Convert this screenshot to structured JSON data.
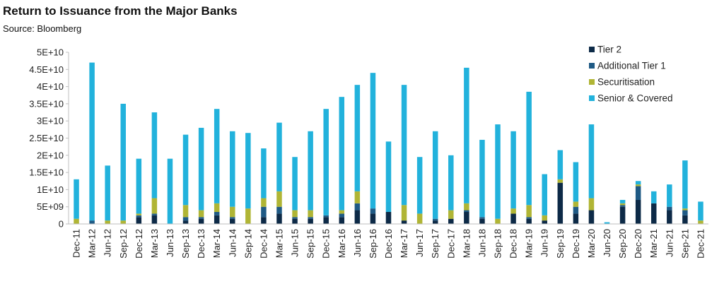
{
  "chart_data": {
    "type": "bar",
    "stacked": true,
    "title": "Return to Issuance from the Major Banks",
    "subtitle": "Source: Bloomberg",
    "xlabel": "",
    "ylabel": "",
    "ylim": [
      0,
      50000000000
    ],
    "yticks": [
      "0",
      "5E+09",
      "1E+10",
      "1.5E+10",
      "2E+10",
      "2.5E+10",
      "3E+10",
      "3.5E+10",
      "4E+10",
      "4.5E+10",
      "5E+10"
    ],
    "grid": false,
    "legend_position": "top-right",
    "categories": [
      "Dec-11",
      "Mar-12",
      "Jun-12",
      "Sep-12",
      "Dec-12",
      "Mar-13",
      "Jun-13",
      "Sep-13",
      "Dec-13",
      "Mar-14",
      "Jun-14",
      "Sep-14",
      "Dec-14",
      "Mar-15",
      "Jun-15",
      "Sep-15",
      "Dec-15",
      "Mar-16",
      "Jun-16",
      "Sep-16",
      "Dec-16",
      "Mar-17",
      "Jun-17",
      "Sep-17",
      "Dec-17",
      "Mar-18",
      "Jun-18",
      "Sep-18",
      "Dec-18",
      "Mar-19",
      "Jun-19",
      "Sep-19",
      "Dec-19",
      "Mar-20",
      "Jun-20",
      "Sep-20",
      "Dec-20",
      "Mar-21",
      "Jun-21",
      "Sep-21",
      "Dec-21"
    ],
    "tick_labels": [
      "Dec-11",
      "Mar-12",
      "Jun-12",
      "Sep-12",
      "Dec-12",
      "Mar-13",
      "Jun-13",
      "Sep-13",
      "Dec-13",
      "Mar-14",
      "Jun-14",
      "Sep-14",
      "Dec-14",
      "Mar-15",
      "Jun-15",
      "Sep-15",
      "Dec-15",
      "Mar-16",
      "Jun-16",
      "Sep-16",
      "Dec-16",
      "Mar-17",
      "Jun-17",
      "Sep-17",
      "Dec-17",
      "Mar-18",
      "Jun-18",
      "Sep-18",
      "Dec-18",
      "Mar-19",
      "Jun-19",
      "Sep-19",
      "Dec-19",
      "Mar-20",
      "Jun-20",
      "Sep-20",
      "Dec-20",
      "Mar-21",
      "Jun-21",
      "Sep-21",
      "Dec-21"
    ],
    "series": [
      {
        "name": "Tier 2",
        "color": "#0d2a47",
        "values": [
          0,
          0,
          0,
          0,
          2000000000,
          2500000000,
          0,
          1000000000,
          1500000000,
          2500000000,
          1500000000,
          0,
          2000000000,
          3000000000,
          1500000000,
          1500000000,
          2000000000,
          2000000000,
          4000000000,
          3000000000,
          3500000000,
          1000000000,
          0,
          1000000000,
          1500000000,
          3500000000,
          1500000000,
          0,
          3000000000,
          1500000000,
          1000000000,
          12000000000,
          3000000000,
          4000000000,
          0,
          5000000000,
          7000000000,
          6000000000,
          4000000000,
          2500000000,
          0
        ]
      },
      {
        "name": "Additional Tier 1",
        "color": "#1f5a85",
        "values": [
          0,
          1000000000,
          0,
          0,
          500000000,
          500000000,
          0,
          1000000000,
          500000000,
          1000000000,
          500000000,
          0,
          3000000000,
          2000000000,
          500000000,
          500000000,
          500000000,
          1000000000,
          2000000000,
          1500000000,
          0,
          0,
          0,
          500000000,
          0,
          500000000,
          500000000,
          0,
          0,
          500000000,
          0,
          0,
          2000000000,
          0,
          0,
          500000000,
          4000000000,
          0,
          1000000000,
          1500000000,
          0
        ]
      },
      {
        "name": "Securitisation",
        "color": "#b0b535",
        "values": [
          1500000000,
          0,
          1000000000,
          1000000000,
          500000000,
          4500000000,
          0,
          3500000000,
          2000000000,
          2500000000,
          3000000000,
          4500000000,
          2500000000,
          4500000000,
          2000000000,
          2000000000,
          0,
          1000000000,
          3500000000,
          0,
          0,
          4500000000,
          3000000000,
          0,
          2500000000,
          2000000000,
          0,
          1500000000,
          1500000000,
          3500000000,
          1500000000,
          1000000000,
          1500000000,
          3500000000,
          0,
          500000000,
          500000000,
          0,
          0,
          500000000,
          1000000000
        ]
      },
      {
        "name": "Senior & Covered",
        "color": "#22b2dc",
        "values": [
          11500000000,
          46000000000,
          16000000000,
          34000000000,
          16000000000,
          25000000000,
          19000000000,
          20500000000,
          24000000000,
          27500000000,
          22000000000,
          22000000000,
          14500000000,
          20000000000,
          15500000000,
          23000000000,
          31000000000,
          33000000000,
          31000000000,
          39500000000,
          20500000000,
          35000000000,
          16500000000,
          25500000000,
          16000000000,
          39500000000,
          22500000000,
          27500000000,
          22500000000,
          33000000000,
          12000000000,
          8500000000,
          11500000000,
          21500000000,
          500000000,
          1000000000,
          1000000000,
          3500000000,
          6500000000,
          14000000000,
          5500000000
        ]
      }
    ]
  }
}
